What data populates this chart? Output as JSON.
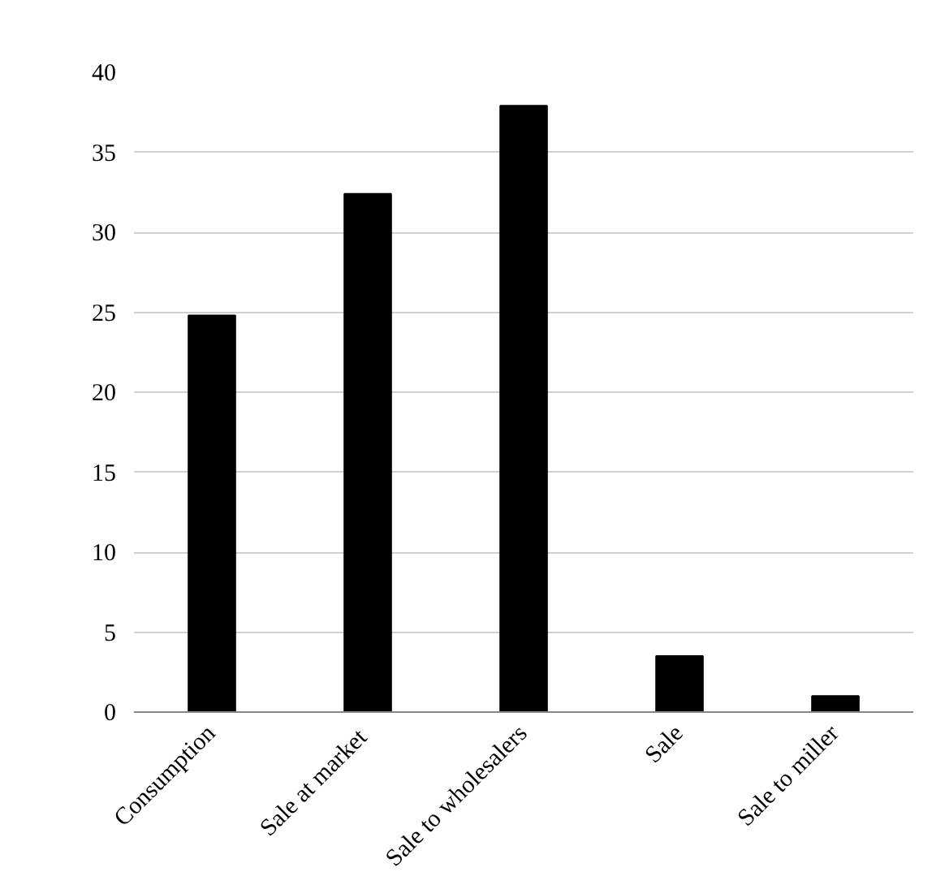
{
  "chart_data": {
    "type": "bar",
    "categories": [
      "Consumption",
      "Sale at  market",
      "Sale to wholesalers",
      "Sale",
      "Sale to miller"
    ],
    "values": [
      24.8,
      32.4,
      37.9,
      3.5,
      1.0
    ],
    "color": "#000000",
    "ylim": [
      0,
      40
    ],
    "yticks": [
      0,
      5,
      10,
      15,
      20,
      25,
      30,
      35,
      40
    ],
    "grid": "y"
  }
}
